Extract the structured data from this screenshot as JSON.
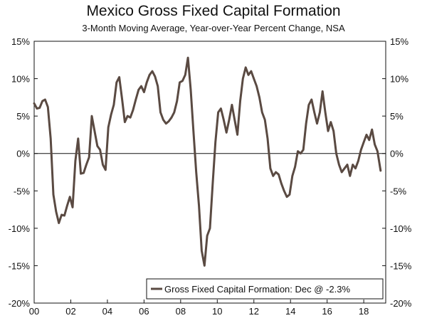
{
  "chart_data": {
    "type": "line",
    "title": "Mexico Gross Fixed Capital Formation",
    "subtitle": "3-Month Moving Average, Year-over-Year Percent Change, NSA",
    "xlabel": "",
    "ylabel": "",
    "xlim": [
      2000,
      2019.2
    ],
    "ylim": [
      -20,
      15
    ],
    "y_ticks": [
      -20,
      -15,
      -10,
      -5,
      0,
      5,
      10,
      15
    ],
    "y_tick_labels": [
      "-20%",
      "-15%",
      "-10%",
      "-5%",
      "0%",
      "5%",
      "10%",
      "15%"
    ],
    "x_ticks": [
      2000,
      2002,
      2004,
      2006,
      2008,
      2010,
      2012,
      2014,
      2016,
      2018
    ],
    "x_tick_labels": [
      "00",
      "02",
      "04",
      "06",
      "08",
      "10",
      "12",
      "14",
      "16",
      "18"
    ],
    "grid": false,
    "legend_position": "bottom-right",
    "series": [
      {
        "name": "Gross Fixed Capital Formation: Dec @ -2.3%",
        "color": "#5a4a42",
        "x": [
          2000.0,
          2000.15,
          2000.3,
          2000.45,
          2000.6,
          2000.75,
          2000.9,
          2001.05,
          2001.2,
          2001.35,
          2001.5,
          2001.65,
          2001.8,
          2001.95,
          2002.1,
          2002.25,
          2002.4,
          2002.55,
          2002.7,
          2002.85,
          2003.0,
          2003.15,
          2003.3,
          2003.45,
          2003.6,
          2003.75,
          2003.9,
          2004.05,
          2004.2,
          2004.35,
          2004.5,
          2004.65,
          2004.8,
          2004.95,
          2005.1,
          2005.25,
          2005.4,
          2005.55,
          2005.7,
          2005.85,
          2006.0,
          2006.15,
          2006.3,
          2006.45,
          2006.6,
          2006.75,
          2006.9,
          2007.05,
          2007.2,
          2007.35,
          2007.5,
          2007.65,
          2007.8,
          2007.95,
          2008.1,
          2008.25,
          2008.4,
          2008.55,
          2008.7,
          2008.85,
          2009.0,
          2009.15,
          2009.3,
          2009.45,
          2009.6,
          2009.75,
          2009.9,
          2010.05,
          2010.2,
          2010.35,
          2010.5,
          2010.65,
          2010.8,
          2010.95,
          2011.1,
          2011.25,
          2011.4,
          2011.55,
          2011.7,
          2011.85,
          2012.0,
          2012.15,
          2012.3,
          2012.45,
          2012.6,
          2012.75,
          2012.9,
          2013.05,
          2013.2,
          2013.35,
          2013.5,
          2013.65,
          2013.8,
          2013.95,
          2014.1,
          2014.25,
          2014.4,
          2014.55,
          2014.7,
          2014.85,
          2015.0,
          2015.15,
          2015.3,
          2015.45,
          2015.6,
          2015.75,
          2015.9,
          2016.05,
          2016.2,
          2016.35,
          2016.5,
          2016.65,
          2016.8,
          2016.95,
          2017.1,
          2017.25,
          2017.4,
          2017.55,
          2017.7,
          2017.85,
          2018.0,
          2018.15,
          2018.3,
          2018.45,
          2018.6,
          2018.75,
          2018.92
        ],
        "values": [
          6.7,
          6.0,
          6.1,
          7.0,
          7.2,
          6.2,
          2.0,
          -5.5,
          -7.8,
          -9.3,
          -8.2,
          -8.3,
          -7.0,
          -5.8,
          -7.2,
          -1.0,
          2.0,
          -2.7,
          -2.6,
          -1.5,
          -0.5,
          5.0,
          3.0,
          1.0,
          0.5,
          -1.5,
          -2.2,
          3.5,
          5.2,
          6.5,
          9.5,
          10.2,
          7.3,
          4.2,
          5.0,
          4.8,
          5.8,
          7.2,
          8.5,
          9.0,
          8.2,
          9.5,
          10.5,
          11.0,
          10.3,
          9.0,
          5.5,
          4.5,
          4.0,
          4.3,
          4.8,
          5.5,
          7.0,
          9.5,
          9.7,
          10.5,
          12.8,
          8.5,
          3.0,
          -2.5,
          -7.0,
          -13.0,
          -15.0,
          -11.0,
          -10.0,
          -4.0,
          1.5,
          5.5,
          6.0,
          4.5,
          2.8,
          4.5,
          6.5,
          4.5,
          2.5,
          7.0,
          10.0,
          11.5,
          10.5,
          11.0,
          10.0,
          9.0,
          7.5,
          5.5,
          4.5,
          2.0,
          -2.0,
          -3.0,
          -2.5,
          -2.8,
          -4.0,
          -5.0,
          -5.8,
          -5.5,
          -3.0,
          -1.8,
          0.3,
          0.0,
          0.5,
          4.0,
          6.5,
          7.2,
          5.5,
          4.0,
          5.5,
          8.3,
          5.5,
          3.0,
          4.2,
          3.0,
          0.0,
          -1.5,
          -2.5,
          -2.0,
          -1.5,
          -3.0,
          -1.5,
          -2.0,
          -1.0,
          0.5,
          1.5,
          2.5,
          1.8,
          3.2,
          1.2,
          0.3,
          -2.3
        ]
      }
    ]
  }
}
